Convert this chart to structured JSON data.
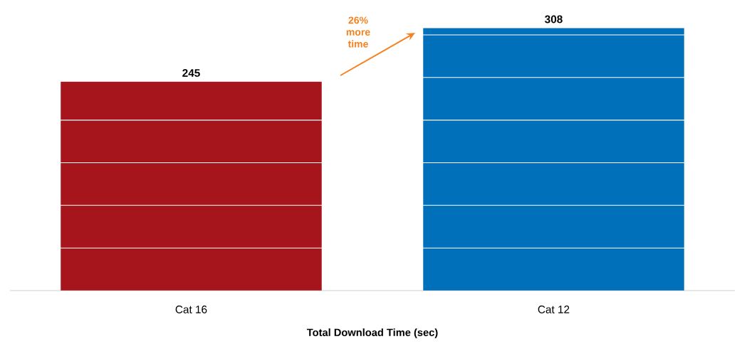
{
  "chart_data": {
    "type": "bar",
    "xlabel": "Total Download Time (sec)",
    "categories": [
      "Cat 16",
      "Cat 12"
    ],
    "values": [
      245,
      308
    ],
    "colors": [
      "#a6141c",
      "#0070bb"
    ],
    "value_labels": [
      "245",
      "308"
    ],
    "ylim": [
      0,
      310
    ],
    "yticks": [
      {
        "value": 50,
        "label": null
      },
      {
        "value": 100,
        "label": null
      },
      {
        "value": 150,
        "label": null
      },
      {
        "value": 200,
        "label": null
      },
      {
        "value": 250,
        "label": null
      },
      {
        "value": 300,
        "label": null
      }
    ],
    "grid": "y",
    "tick_labels": "x",
    "annotations": [
      "26% more time"
    ]
  }
}
